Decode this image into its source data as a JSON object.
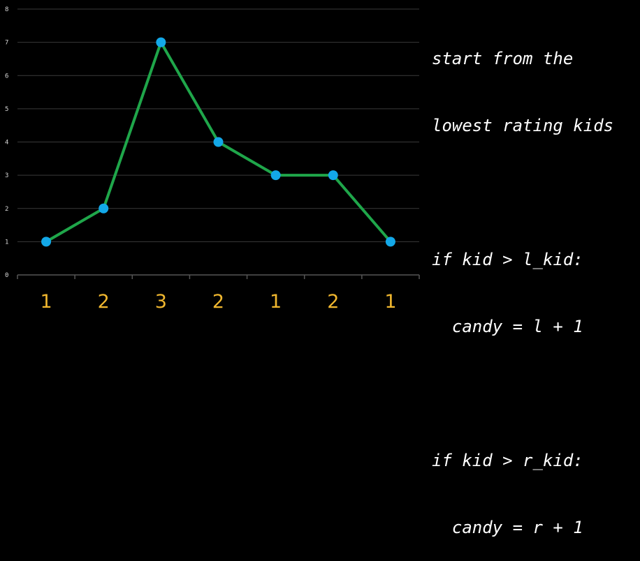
{
  "chart_data": {
    "type": "line",
    "y_values": [
      1,
      2,
      7,
      4,
      3,
      3,
      1
    ],
    "x_labels": [
      "1",
      "2",
      "3",
      "2",
      "1",
      "2",
      "1"
    ],
    "ylim": [
      0,
      8
    ],
    "y_ticks": [
      "0",
      "1",
      "2",
      "3",
      "4",
      "5",
      "6",
      "7",
      "8"
    ],
    "grid": true,
    "colors": {
      "line": "#1fa64a",
      "points": "#13a8e8",
      "x_labels": "#f0b72f",
      "grid": "#3a3a3a"
    }
  },
  "code": {
    "lines": [
      "start from the",
      "lowest rating kids",
      "",
      "if kid > l_kid:",
      "  candy = l + 1",
      "",
      "if kid > r_kid:",
      "  candy = r + 1"
    ]
  }
}
